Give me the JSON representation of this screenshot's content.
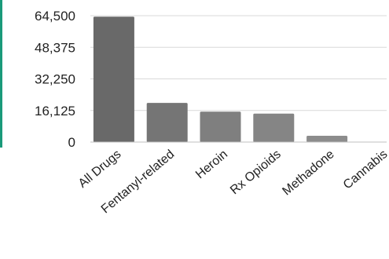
{
  "colors": {
    "accent": "#1a9a7a",
    "grid": "#d9d9d9",
    "axis": "#bfbfbf"
  },
  "chart_data": {
    "type": "bar",
    "categories": [
      "All Drugs",
      "Fentanyl-related",
      "Heroin",
      "Rx Opioids",
      "Methadone",
      "Cannabis"
    ],
    "values": [
      64000,
      20000,
      15500,
      14500,
      3200,
      0
    ],
    "bar_colors": [
      "#696969",
      "#757575",
      "#7f7f7f",
      "#858585",
      "#8c8c8c",
      "#8c8c8c"
    ],
    "yticks": [
      0,
      16125,
      32250,
      48375,
      64500
    ],
    "ytick_labels": [
      "0",
      "16,125",
      "32,250",
      "48,375",
      "64,500"
    ],
    "ylim": [
      0,
      64500
    ],
    "grid": true,
    "legend": "none"
  }
}
